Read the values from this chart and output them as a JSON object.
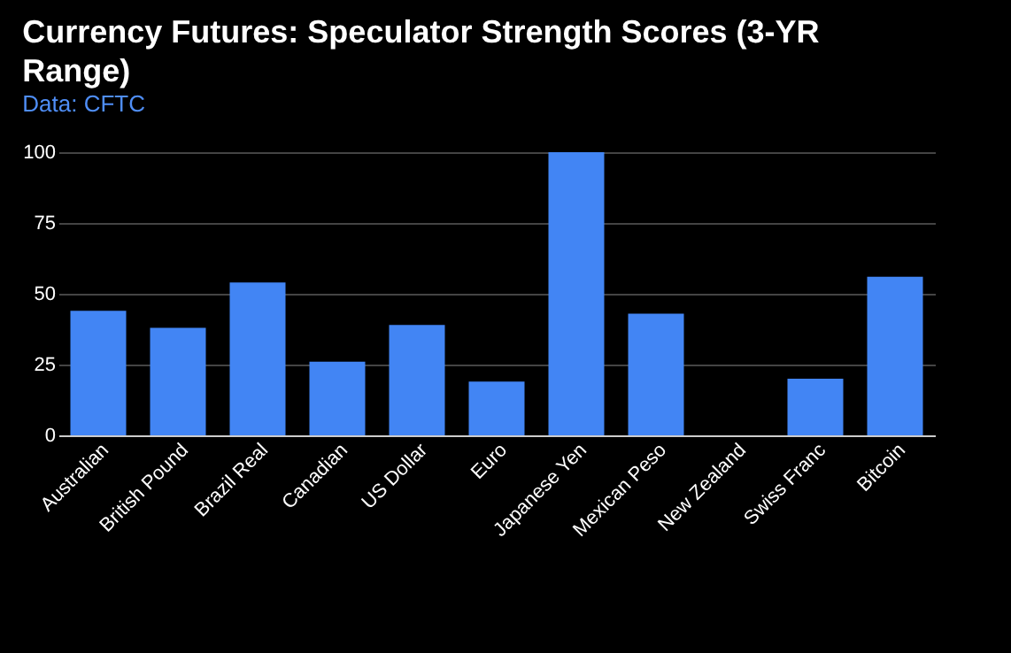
{
  "chart_data": {
    "type": "bar",
    "title": "Currency Futures: Speculator Strength Scores (3-YR Range)",
    "subtitle": "Data: CFTC",
    "categories": [
      "Australian",
      "British Pound",
      "Brazil Real",
      "Canadian",
      "US Dollar",
      "Euro",
      "Japanese Yen",
      "Mexican Peso",
      "New Zealand",
      "Swiss Franc",
      "Bitcoin"
    ],
    "values": [
      44,
      38,
      54,
      26,
      39,
      19,
      100,
      43,
      0,
      20,
      56
    ],
    "color": "#4285f4",
    "ylim": [
      0,
      100
    ],
    "yticks": [
      0,
      25,
      50,
      75,
      100
    ],
    "grid": "y"
  }
}
